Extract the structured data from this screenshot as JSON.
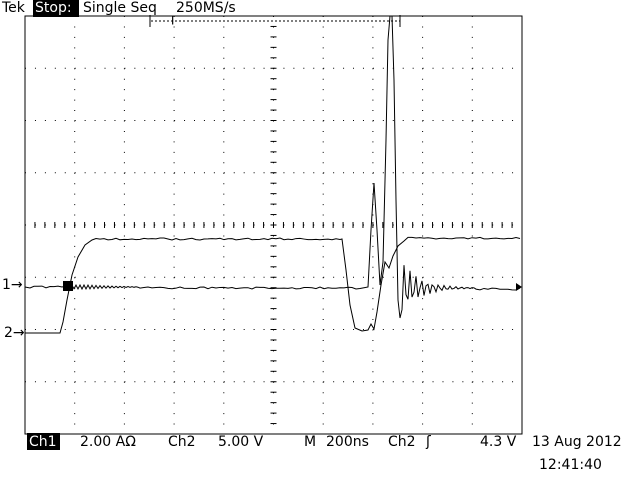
{
  "header": {
    "brand": "Tek",
    "state": "Stop:",
    "mode": "Single Seq",
    "sample_rate": "250MS/s",
    "trigger_marker": "T"
  },
  "channel_markers": [
    "1→",
    "2→"
  ],
  "footer": {
    "ch1_label": "Ch1",
    "ch1_scale": "2.00 AΩ",
    "ch2_label": "Ch2",
    "ch2_scale": "5.00 V",
    "timebase_label": "M",
    "timebase": "200ns",
    "trigger_source": "Ch2",
    "trigger_slope": "ʃ",
    "trigger_level": "4.3 V",
    "date": "13 Aug 2012",
    "time": "12:41:40"
  }
}
